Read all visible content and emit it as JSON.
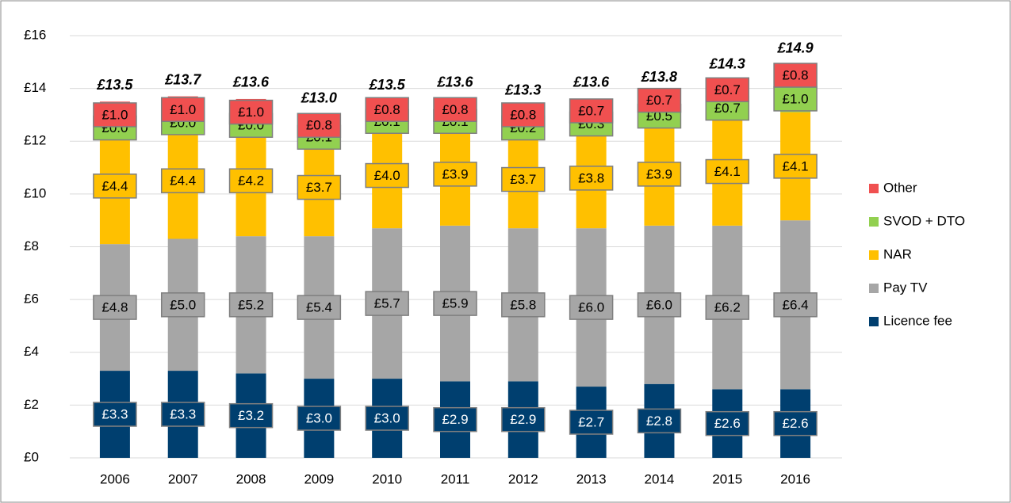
{
  "chart_data": {
    "type": "stacked_bar",
    "categories": [
      "2006",
      "2007",
      "2008",
      "2009",
      "2010",
      "2011",
      "2012",
      "2013",
      "2014",
      "2015",
      "2016"
    ],
    "series": [
      {
        "name": "Licence fee",
        "color": "#003f6f",
        "label_color": "#ffffff",
        "values": [
          3.3,
          3.3,
          3.2,
          3.0,
          3.0,
          2.9,
          2.9,
          2.7,
          2.8,
          2.6,
          2.6
        ],
        "value_labels": [
          "£3.3",
          "£3.3",
          "£3.2",
          "£3.0",
          "£3.0",
          "£2.9",
          "£2.9",
          "£2.7",
          "£2.8",
          "£2.6",
          "£2.6"
        ]
      },
      {
        "name": "Pay TV",
        "color": "#a6a6a6",
        "label_color": "#000000",
        "values": [
          4.8,
          5.0,
          5.2,
          5.4,
          5.7,
          5.9,
          5.8,
          6.0,
          6.0,
          6.2,
          6.4
        ],
        "value_labels": [
          "£4.8",
          "£5.0",
          "£5.2",
          "£5.4",
          "£5.7",
          "£5.9",
          "£5.8",
          "£6.0",
          "£6.0",
          "£6.2",
          "£6.4"
        ]
      },
      {
        "name": "NAR",
        "color": "#ffc000",
        "label_color": "#000000",
        "values": [
          4.4,
          4.4,
          4.2,
          3.7,
          4.0,
          3.9,
          3.7,
          3.8,
          3.9,
          4.1,
          4.1
        ],
        "value_labels": [
          "£4.4",
          "£4.4",
          "£4.2",
          "£3.7",
          "£4.0",
          "£3.9",
          "£3.7",
          "£3.8",
          "£3.9",
          "£4.1",
          "£4.1"
        ]
      },
      {
        "name": "SVOD + DTO",
        "color": "#92d050",
        "label_color": "#000000",
        "values": [
          0.0,
          0.0,
          0.0,
          0.1,
          0.1,
          0.1,
          0.2,
          0.3,
          0.5,
          0.7,
          1.0
        ],
        "value_labels": [
          "£0.0",
          "£0.0",
          "£0.0",
          "£0.1",
          "£0.1",
          "£0.1",
          "£0.2",
          "£0.3",
          "£0.5",
          "£0.7",
          "£1.0"
        ]
      },
      {
        "name": "Other",
        "color": "#f05050",
        "label_color": "#000000",
        "values": [
          1.0,
          1.0,
          1.0,
          0.8,
          0.8,
          0.8,
          0.8,
          0.7,
          0.7,
          0.7,
          0.8
        ],
        "value_labels": [
          "£1.0",
          "£1.0",
          "£1.0",
          "£0.8",
          "£0.8",
          "£0.8",
          "£0.8",
          "£0.7",
          "£0.7",
          "£0.7",
          "£0.8"
        ]
      }
    ],
    "totals": [
      13.5,
      13.7,
      13.6,
      13.0,
      13.5,
      13.6,
      13.3,
      13.6,
      13.8,
      14.3,
      14.9
    ],
    "total_labels": [
      "£13.5",
      "£13.7",
      "£13.6",
      "£13.0",
      "£13.5",
      "£13.6",
      "£13.3",
      "£13.6",
      "£13.8",
      "£14.3",
      "£14.9"
    ],
    "ylim": [
      0,
      16
    ],
    "yticks": [
      {
        "value": 0,
        "label": "£0"
      },
      {
        "value": 2,
        "label": "£2"
      },
      {
        "value": 4,
        "label": "£4"
      },
      {
        "value": 6,
        "label": "£6"
      },
      {
        "value": 8,
        "label": "£8"
      },
      {
        "value": 10,
        "label": "£10"
      },
      {
        "value": 12,
        "label": "£12"
      },
      {
        "value": 14,
        "label": "£14"
      },
      {
        "value": 16,
        "label": "£16"
      }
    ],
    "grid": true,
    "legend": "right"
  }
}
